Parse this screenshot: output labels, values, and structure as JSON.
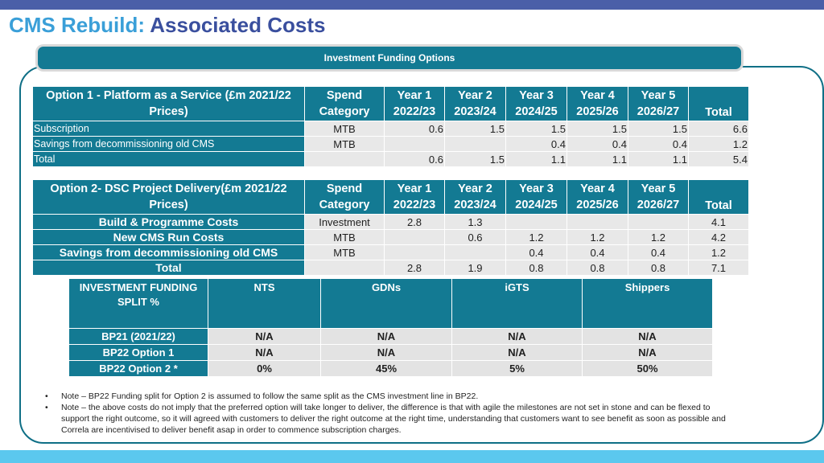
{
  "title": {
    "part1": "CMS Rebuild:",
    "part2": "Associated Costs"
  },
  "banner": "Investment Funding Options",
  "option1": {
    "header": [
      "Option 1 - Platform as a Service (£m 2021/22 Prices)",
      "Spend Category",
      "Year 1 2022/23",
      "Year 2 2023/24",
      "Year 3 2024/25",
      "Year 4 2025/26",
      "Year 5 2026/27",
      "Total"
    ],
    "rows": [
      [
        "Subscription",
        "MTB",
        "0.6",
        "1.5",
        "1.5",
        "1.5",
        "1.5",
        "6.6"
      ],
      [
        "Savings from decommissioning old CMS",
        "MTB",
        "",
        "",
        "0.4",
        "0.4",
        "0.4",
        "1.2"
      ],
      [
        "Total",
        "",
        "0.6",
        "1.5",
        "1.1",
        "1.1",
        "1.1",
        "5.4"
      ]
    ]
  },
  "option2": {
    "header": [
      "Option 2- DSC Project Delivery(£m 2021/22 Prices)",
      "Spend Category",
      "Year 1 2022/23",
      "Year 2 2023/24",
      "Year 3 2024/25",
      "Year 4 2025/26",
      "Year 5 2026/27",
      "Total"
    ],
    "rows": [
      [
        "Build & Programme Costs",
        "Investment",
        "2.8",
        "1.3",
        "",
        "",
        "",
        "4.1"
      ],
      [
        "New CMS Run Costs",
        "MTB",
        "",
        "0.6",
        "1.2",
        "1.2",
        "1.2",
        "4.2"
      ],
      [
        "Savings from decommissioning old CMS",
        "MTB",
        "",
        "",
        "0.4",
        "0.4",
        "0.4",
        "1.2"
      ],
      [
        "Total",
        "",
        "2.8",
        "1.9",
        "0.8",
        "0.8",
        "0.8",
        "7.1"
      ]
    ]
  },
  "split": {
    "header": [
      "INVESTMENT FUNDING SPLIT %",
      "NTS",
      "GDNs",
      "iGTS",
      "Shippers"
    ],
    "rows": [
      [
        "BP21 (2021/22)",
        "N/A",
        "N/A",
        "N/A",
        "N/A"
      ],
      [
        "BP22 Option 1",
        "N/A",
        "N/A",
        "N/A",
        "N/A"
      ],
      [
        "BP22 Option 2 *",
        "0%",
        "45%",
        "5%",
        "50%"
      ]
    ]
  },
  "notes": [
    {
      "bullet": "•",
      "text": "Note – BP22 Funding split for Option 2 is assumed to follow the same split as the CMS investment line in BP22."
    },
    {
      "bullet": "•",
      "text": "Note – the above costs do not imply that the preferred option will take longer to deliver, the  difference is that with agile the milestones are not set in stone and can be flexed to support the right outcome, so it will agreed with customers to deliver the right outcome at the right time, understanding that customers want to see benefit as soon as possible and Correla are incentivised to deliver benefit asap in order to commence subscription charges."
    }
  ],
  "colors": {
    "teal": "#137a93",
    "title_light": "#3a9fd8",
    "title_dark": "#3a4f9e",
    "top_bar": "#4a5fa8",
    "bottom_bar": "#5bc8ee"
  }
}
